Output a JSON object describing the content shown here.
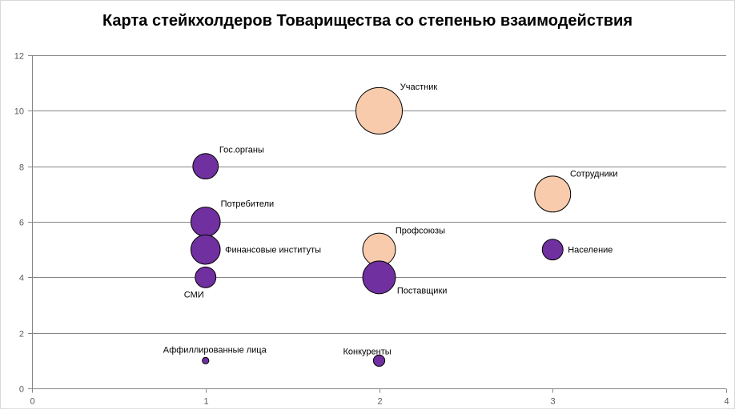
{
  "chart_data": {
    "type": "bubble",
    "title": "Карта стейкхолдеров Товарищества со степенью взаимодействия",
    "xlabel": "",
    "ylabel": "",
    "xlim": [
      0,
      4
    ],
    "ylim": [
      0,
      12
    ],
    "x_ticks": [
      0,
      1,
      2,
      3,
      4
    ],
    "y_ticks": [
      0,
      2,
      4,
      6,
      8,
      10,
      12
    ],
    "grid": "horizontal",
    "legend": "none",
    "colors": {
      "purple": "#7030a0",
      "peach": "#f8cbad",
      "outline": "#000000",
      "grid": "#868686",
      "axis": "#868686",
      "tick_text": "#595959"
    },
    "points": [
      {
        "name": "Участник",
        "x": 2,
        "y": 10,
        "size": 10,
        "color": "peach",
        "label_pos": "upper-right"
      },
      {
        "name": "Гос.органы",
        "x": 1,
        "y": 8,
        "size": 3,
        "color": "purple",
        "label_pos": "upper-right"
      },
      {
        "name": "Сотрудники",
        "x": 3,
        "y": 7,
        "size": 6,
        "color": "peach",
        "label_pos": "upper-right"
      },
      {
        "name": "Потребители",
        "x": 1,
        "y": 6,
        "size": 4,
        "color": "purple",
        "label_pos": "upper-right"
      },
      {
        "name": "Финансовые институты",
        "x": 1,
        "y": 5,
        "size": 4,
        "color": "purple",
        "label_pos": "right"
      },
      {
        "name": "Профсоюзы",
        "x": 2,
        "y": 5,
        "size": 5,
        "color": "peach",
        "label_pos": "upper-right"
      },
      {
        "name": "Население",
        "x": 3,
        "y": 5,
        "size": 2,
        "color": "purple",
        "label_pos": "right"
      },
      {
        "name": "СМИ",
        "x": 1,
        "y": 4,
        "size": 2,
        "color": "purple",
        "label_pos": "below-left"
      },
      {
        "name": "Поставщики",
        "x": 2,
        "y": 4,
        "size": 5,
        "color": "purple",
        "label_pos": "lower-right"
      },
      {
        "name": "Аффиллированные лица",
        "x": 1,
        "y": 1,
        "size": 0.2,
        "color": "purple",
        "label_pos": "above"
      },
      {
        "name": "Конкуренты",
        "x": 2,
        "y": 1,
        "size": 0.6,
        "color": "purple",
        "label_pos": "above-left"
      }
    ]
  }
}
